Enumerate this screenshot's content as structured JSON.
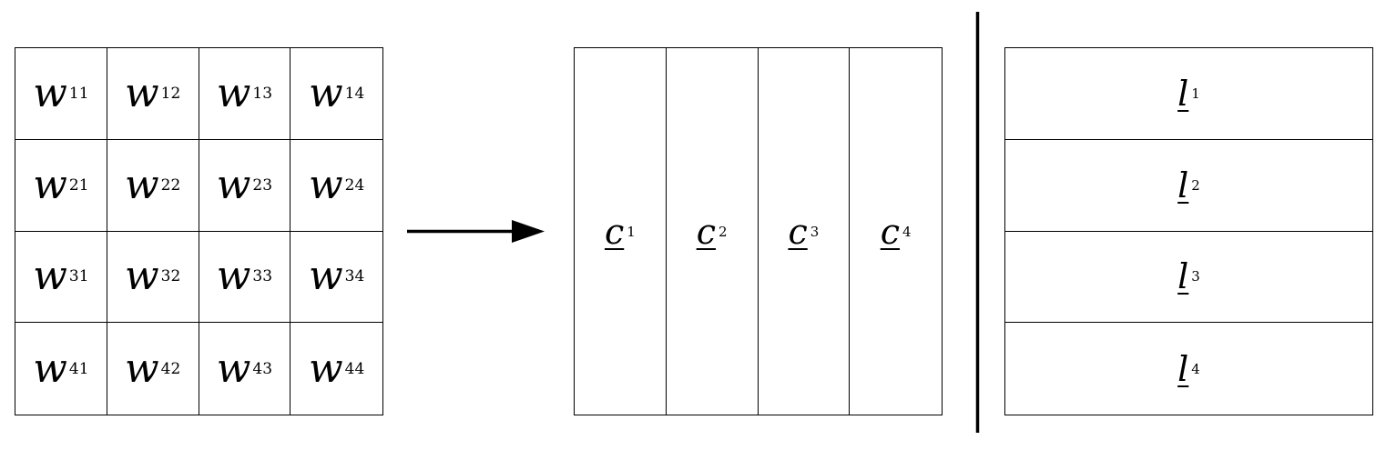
{
  "matrix": {
    "cells": [
      {
        "sym": "w",
        "sub": "11"
      },
      {
        "sym": "w",
        "sub": "12"
      },
      {
        "sym": "w",
        "sub": "13"
      },
      {
        "sym": "w",
        "sub": "14"
      },
      {
        "sym": "w",
        "sub": "21"
      },
      {
        "sym": "w",
        "sub": "22"
      },
      {
        "sym": "w",
        "sub": "23"
      },
      {
        "sym": "w",
        "sub": "24"
      },
      {
        "sym": "w",
        "sub": "31"
      },
      {
        "sym": "w",
        "sub": "32"
      },
      {
        "sym": "w",
        "sub": "33"
      },
      {
        "sym": "w",
        "sub": "34"
      },
      {
        "sym": "w",
        "sub": "41"
      },
      {
        "sym": "w",
        "sub": "42"
      },
      {
        "sym": "w",
        "sub": "43"
      },
      {
        "sym": "w",
        "sub": "44"
      }
    ]
  },
  "columns": [
    {
      "sym": "c",
      "sub": "1"
    },
    {
      "sym": "c",
      "sub": "2"
    },
    {
      "sym": "c",
      "sub": "3"
    },
    {
      "sym": "c",
      "sub": "4"
    }
  ],
  "rows": [
    {
      "sym": "l",
      "sub": "1"
    },
    {
      "sym": "l",
      "sub": "2"
    },
    {
      "sym": "l",
      "sub": "3"
    },
    {
      "sym": "l",
      "sub": "4"
    }
  ]
}
